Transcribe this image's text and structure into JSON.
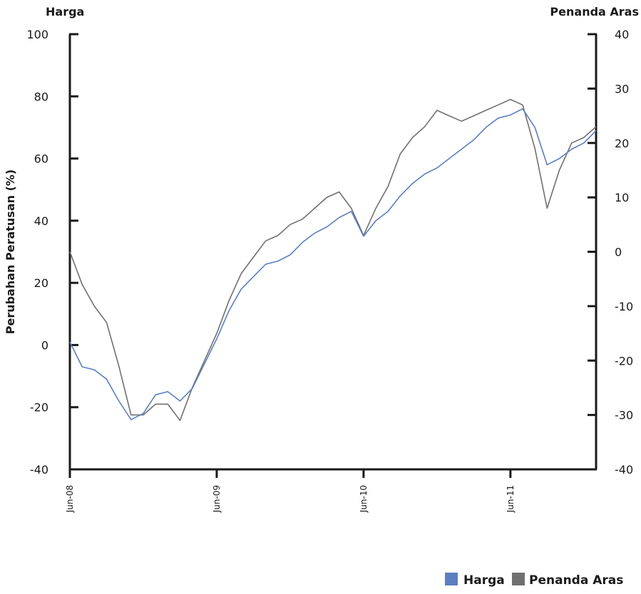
{
  "chart_data": {
    "type": "line",
    "left_axis_title": "Harga",
    "right_axis_title": "Penanda Aras",
    "ylabel": "Perubahan Peratusan (%)",
    "xlabel": "",
    "x_ticks": [
      "Jun-08",
      "Jun-09",
      "Jun-10",
      "Jun-11"
    ],
    "x_range": [
      "2008-06",
      "2012-01"
    ],
    "y_left": {
      "lim": [
        -40,
        100
      ],
      "ticks": [
        "100",
        "80",
        "60",
        "40",
        "20",
        "0",
        "-20",
        "-40"
      ]
    },
    "y_right": {
      "lim": [
        -40,
        40
      ],
      "ticks": [
        "40",
        "30",
        "20",
        "10",
        "0",
        "-10",
        "-20",
        "-30",
        "-40"
      ]
    },
    "legend_position": "bottom-right",
    "grid": false,
    "series": [
      {
        "name": "Harga",
        "axis": "left",
        "color": "#5b7fbf",
        "x": [
          "2008-06",
          "2008-07",
          "2008-08",
          "2008-09",
          "2008-10",
          "2008-11",
          "2008-12",
          "2009-01",
          "2009-02",
          "2009-03",
          "2009-04",
          "2009-05",
          "2009-06",
          "2009-07",
          "2009-08",
          "2009-09",
          "2009-10",
          "2009-11",
          "2009-12",
          "2010-01",
          "2010-02",
          "2010-03",
          "2010-04",
          "2010-05",
          "2010-06",
          "2010-07",
          "2010-08",
          "2010-09",
          "2010-10",
          "2010-11",
          "2010-12",
          "2011-01",
          "2011-02",
          "2011-03",
          "2011-04",
          "2011-05",
          "2011-06",
          "2011-07",
          "2011-08",
          "2011-09",
          "2011-10",
          "2011-11",
          "2011-12",
          "2012-01"
        ],
        "values": [
          1,
          -7,
          -8,
          -11,
          -18,
          -24,
          -22,
          -16,
          -15,
          -18,
          -14,
          -6,
          2,
          11,
          18,
          22,
          26,
          27,
          29,
          33,
          36,
          38,
          41,
          43,
          35,
          40,
          43,
          48,
          52,
          55,
          57,
          60,
          63,
          66,
          70,
          73,
          74,
          76,
          70,
          58,
          60,
          63,
          65,
          69
        ]
      },
      {
        "name": "Penanda Aras",
        "axis": "right",
        "color": "#707070",
        "x": [
          "2008-06",
          "2008-07",
          "2008-08",
          "2008-09",
          "2008-10",
          "2008-11",
          "2008-12",
          "2009-01",
          "2009-02",
          "2009-03",
          "2009-04",
          "2009-05",
          "2009-06",
          "2009-07",
          "2009-08",
          "2009-09",
          "2009-10",
          "2009-11",
          "2009-12",
          "2010-01",
          "2010-02",
          "2010-03",
          "2010-04",
          "2010-05",
          "2010-06",
          "2010-07",
          "2010-08",
          "2010-09",
          "2010-10",
          "2010-11",
          "2010-12",
          "2011-01",
          "2011-02",
          "2011-03",
          "2011-04",
          "2011-05",
          "2011-06",
          "2011-07",
          "2011-08",
          "2011-09",
          "2011-10",
          "2011-11",
          "2011-12",
          "2012-01"
        ],
        "values": [
          0,
          -6,
          -10,
          -13,
          -21,
          -30,
          -30,
          -28,
          -28,
          -31,
          -25,
          -20,
          -15,
          -9,
          -4,
          -1,
          2,
          3,
          5,
          6,
          8,
          10,
          11,
          8,
          3,
          8,
          12,
          18,
          21,
          23,
          26,
          25,
          24,
          25,
          26,
          27,
          28,
          27,
          19,
          8,
          15,
          20,
          21,
          23
        ]
      }
    ]
  }
}
